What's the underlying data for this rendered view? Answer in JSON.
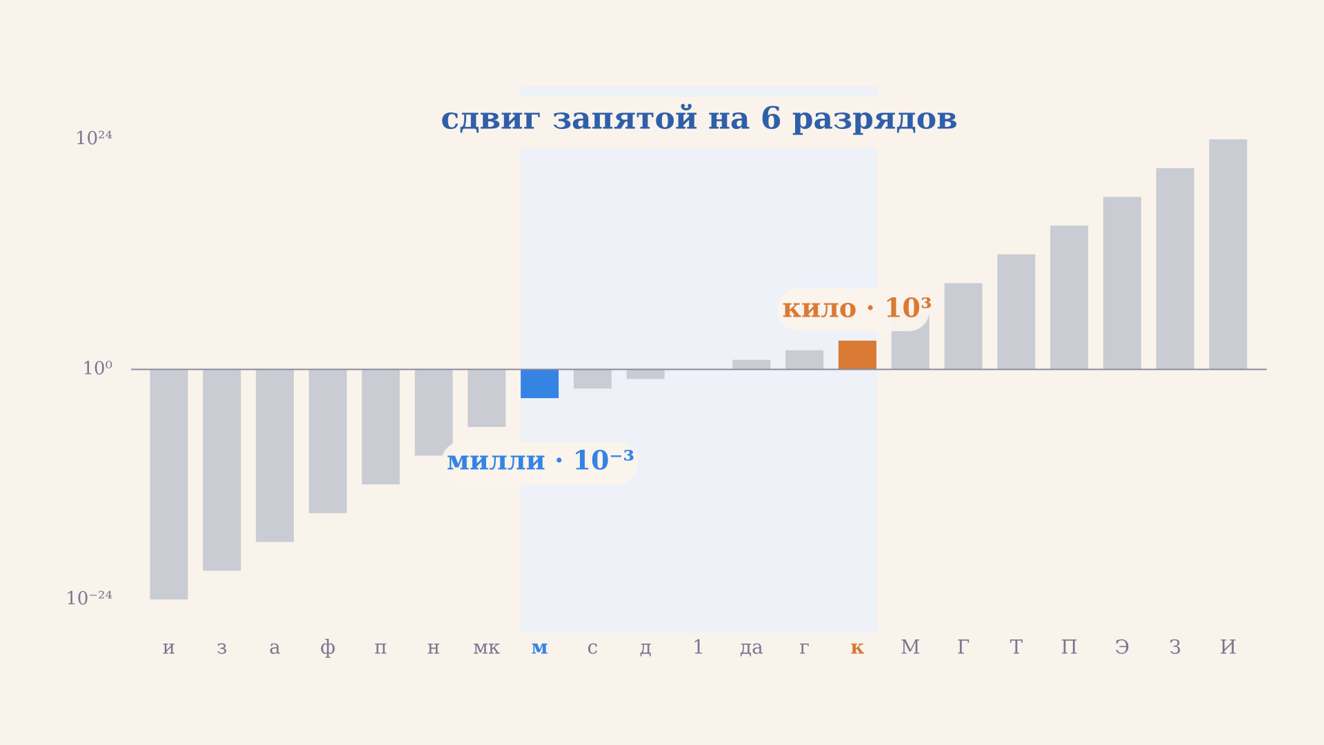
{
  "chart_data": {
    "type": "bar",
    "title": "сдвиг запятой на 6 разрядов",
    "categories": [
      "и",
      "з",
      "а",
      "ф",
      "п",
      "н",
      "мк",
      "м",
      "с",
      "д",
      "1",
      "да",
      "г",
      "к",
      "М",
      "Г",
      "Т",
      "П",
      "Э",
      "З",
      "И"
    ],
    "values": [
      1e-24,
      1e-21,
      1e-18,
      1e-15,
      1e-12,
      1e-09,
      1e-06,
      0.001,
      0.01,
      0.1,
      1,
      10,
      100,
      1000,
      1000000.0,
      1000000000.0,
      1000000000000.0,
      1000000000000000.0,
      1e+18,
      1e+21,
      1e+24
    ],
    "colors": [
      "#c9ccd2",
      "#c9ccd2",
      "#c9ccd2",
      "#c9ccd2",
      "#c9ccd2",
      "#c9ccd2",
      "#c9ccd2",
      "#3584e4",
      "#c9ccd2",
      "#c9ccd2",
      "#c9ccd2",
      "#c9ccd2",
      "#c9ccd2",
      "#d97a35",
      "#c9ccd2",
      "#c9ccd2",
      "#c9ccd2",
      "#c9ccd2",
      "#c9ccd2",
      "#c9ccd2",
      "#c9ccd2"
    ],
    "log_scale": true,
    "ylim": [
      1e-24,
      1e+24
    ],
    "yticks": [
      {
        "value": 1e+24,
        "label": "10²⁴"
      },
      {
        "value": 1,
        "label": "10⁰"
      },
      {
        "value": 1e-24,
        "label": "10⁻²⁴"
      }
    ],
    "annotations": [
      "милли · 10⁻³",
      "кило · 10³"
    ]
  }
}
